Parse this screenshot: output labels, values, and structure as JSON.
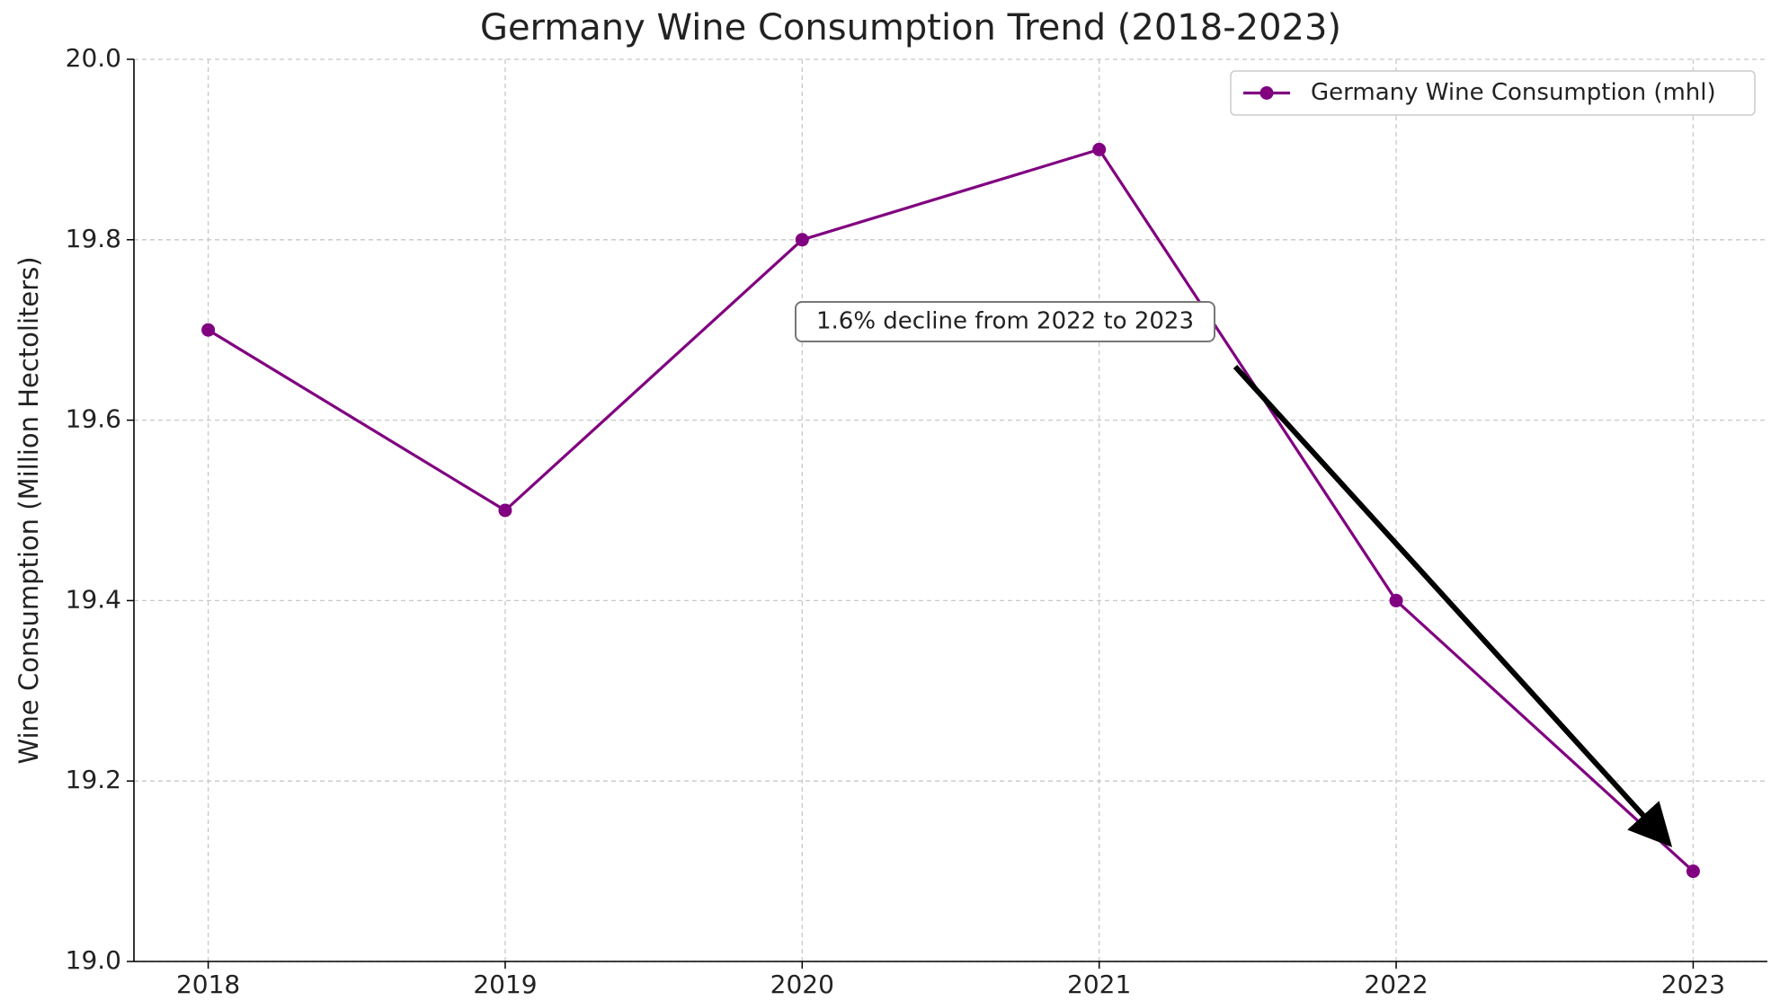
{
  "chart_data": {
    "type": "line",
    "title": "Germany Wine Consumption Trend (2018-2023)",
    "y_label": "Wine Consumption (Million Hectoliters)",
    "x": [
      2018,
      2019,
      2020,
      2021,
      2022,
      2023
    ],
    "series": [
      {
        "name": "Germany Wine Consumption (mhl)",
        "color": "#800080",
        "values": [
          19.7,
          19.5,
          19.8,
          19.9,
          19.4,
          19.1
        ]
      }
    ],
    "xlim": [
      2017.75,
      2023.25
    ],
    "xticks": [
      2018,
      2019,
      2020,
      2021,
      2022,
      2023
    ],
    "ylim": [
      19.0,
      20.0
    ],
    "yticks": [
      {
        "value": 19.0,
        "label": "19.0"
      },
      19.2,
      19.4,
      19.6,
      19.8,
      {
        "value": 20.0,
        "label": "20.0"
      }
    ],
    "grid": true,
    "legend": "upper right",
    "annotation": "1.6% decline from 2022 to 2023"
  }
}
